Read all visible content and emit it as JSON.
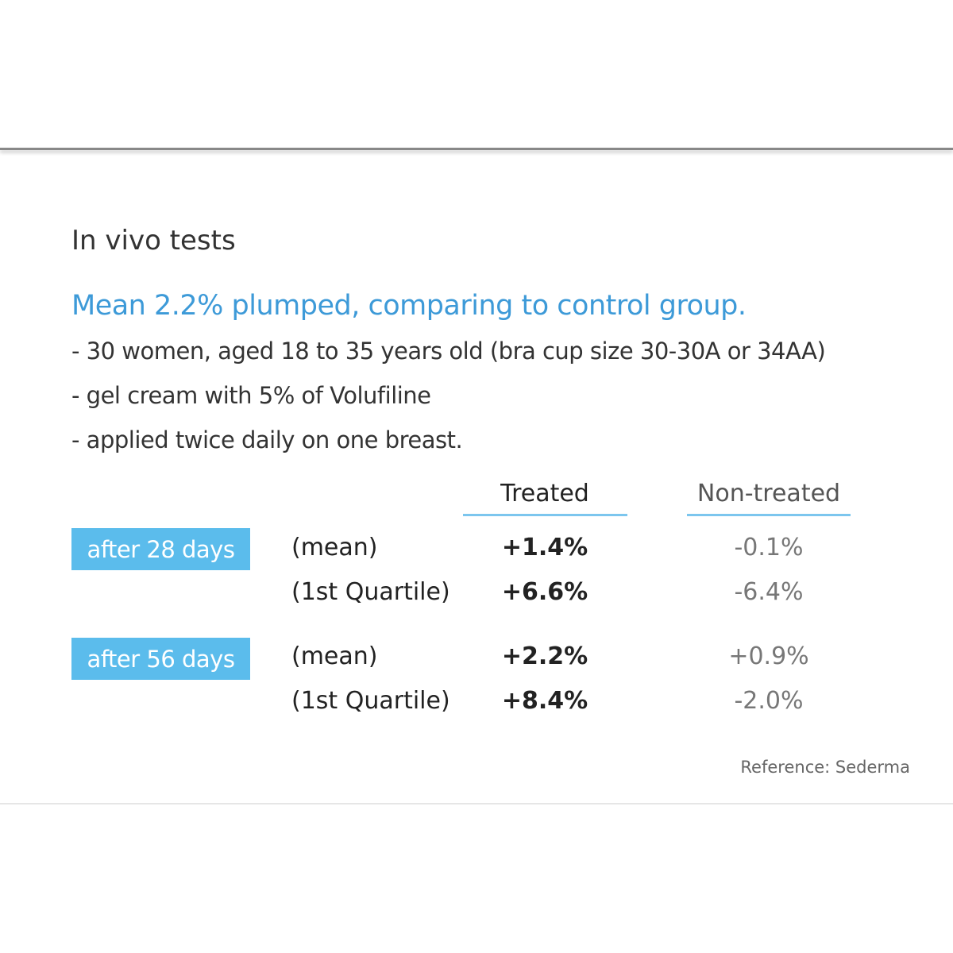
{
  "header": {
    "title": "In vivo tests"
  },
  "headline": "Mean 2.2% plumped, comparing to control group.",
  "bullets": [
    "- 30 women, aged 18 to 35 years old (bra cup size 30-30A or 34AA)",
    "- gel cream with 5% of Volufiline",
    "- applied twice daily on one breast."
  ],
  "table": {
    "columns": [
      "Treated",
      "Non-treated"
    ],
    "groups": [
      {
        "label": "after 28 days",
        "rows": [
          [
            "(mean)",
            "+1.4%",
            "-0.1%"
          ],
          [
            "(1st Quartile)",
            "+6.6%",
            "-6.4%"
          ]
        ]
      },
      {
        "label": "after 56 days",
        "rows": [
          [
            "(mean)",
            "+2.2%",
            "+0.9%"
          ],
          [
            "(1st Quartile)",
            "+8.4%",
            "-2.0%"
          ]
        ]
      }
    ]
  },
  "footer": {
    "reference": "Reference: Sederma"
  }
}
